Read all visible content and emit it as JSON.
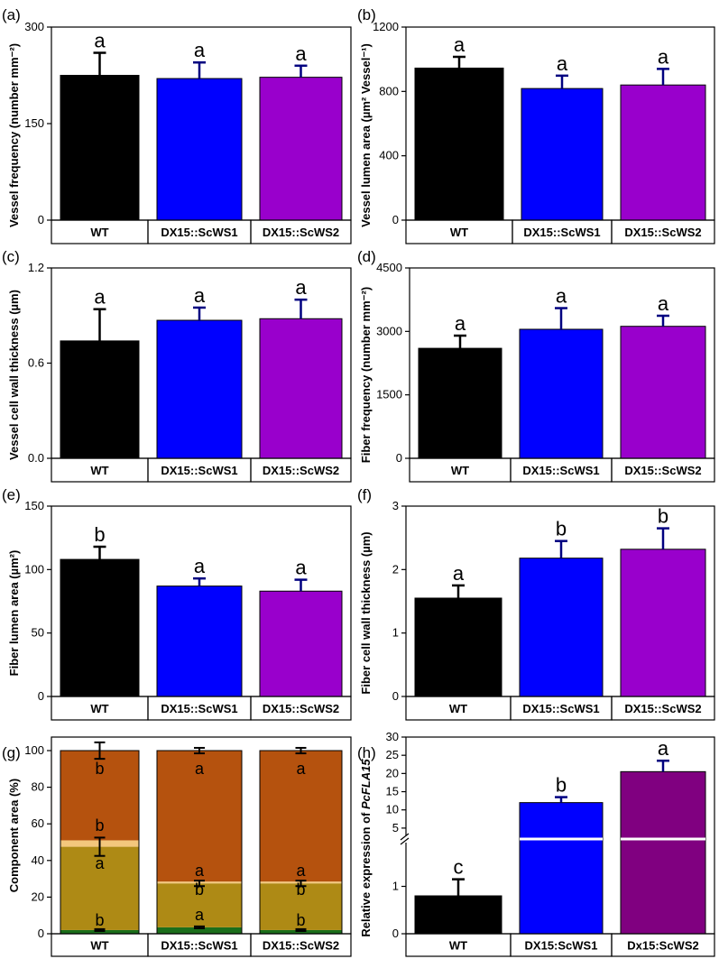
{
  "figure_title": "Multi-panel bar chart figure",
  "colors": {
    "WT": "#000000",
    "DX15::ScWS1": "#0000ff",
    "DX15::ScWS2": "#9900cc",
    "Dx15:ScWS2": "#800080",
    "heartwood": "#b5520e",
    "band": "#f3c77c",
    "wall": "#ae8a15",
    "base": "#1b6e1b"
  },
  "chart_data": [
    {
      "id": "a",
      "panel_label": "(a)",
      "type": "bar",
      "categories": [
        "WT",
        "DX15::ScWS1",
        "DX15::ScWS2"
      ],
      "values": [
        225,
        220,
        222
      ],
      "errors": [
        35,
        25,
        18
      ],
      "letters": [
        "a",
        "a",
        "a"
      ],
      "ylabel": "Vessel frequency (number mm⁻²)",
      "ylim": [
        0,
        300
      ],
      "yticks": [
        0,
        150,
        300
      ],
      "series": [
        {
          "name": "Vessel frequency",
          "values": [
            225,
            220,
            222
          ]
        }
      ]
    },
    {
      "id": "b",
      "panel_label": "(b)",
      "type": "bar",
      "categories": [
        "WT",
        "DX15::ScWS1",
        "DX15::ScWS2"
      ],
      "values": [
        945,
        818,
        840
      ],
      "errors": [
        70,
        80,
        100
      ],
      "letters": [
        "a",
        "a",
        "a"
      ],
      "ylabel": "Vessel lumen area (µm² Vessel⁻¹)",
      "ylim": [
        0,
        1200
      ],
      "yticks": [
        0,
        400,
        800,
        1200
      ],
      "series": [
        {
          "name": "Vessel lumen area",
          "values": [
            945,
            818,
            840
          ]
        }
      ]
    },
    {
      "id": "c",
      "panel_label": "(c)",
      "type": "bar",
      "categories": [
        "WT",
        "DX15::ScWS1",
        "DX15::ScWS2"
      ],
      "values": [
        0.74,
        0.87,
        0.88
      ],
      "errors": [
        0.2,
        0.08,
        0.12
      ],
      "letters": [
        "a",
        "a",
        "a"
      ],
      "ylabel": "Vessel cell wall thickness (µm)",
      "ylim": [
        0,
        1.2
      ],
      "yticks": [
        "0.0",
        "0.6",
        "1.2"
      ],
      "series": [
        {
          "name": "Vessel cell wall thickness",
          "values": [
            0.74,
            0.87,
            0.88
          ]
        }
      ]
    },
    {
      "id": "d",
      "panel_label": "(d)",
      "type": "bar",
      "categories": [
        "WT",
        "DX15::ScWS1",
        "DX15::ScWS2"
      ],
      "values": [
        2600,
        3050,
        3120
      ],
      "errors": [
        300,
        500,
        250
      ],
      "letters": [
        "a",
        "a",
        "a"
      ],
      "ylabel": "Fiber frequency (number mm⁻²)",
      "ylim": [
        0,
        4500
      ],
      "yticks": [
        0,
        1500,
        3000,
        4500
      ],
      "series": [
        {
          "name": "Fiber frequency",
          "values": [
            2600,
            3050,
            3120
          ]
        }
      ]
    },
    {
      "id": "e",
      "panel_label": "(e)",
      "type": "bar",
      "categories": [
        "WT",
        "DX15::ScWS1",
        "DX15::ScWS2"
      ],
      "values": [
        108,
        87,
        83
      ],
      "errors": [
        10,
        6,
        9
      ],
      "letters": [
        "b",
        "a",
        "a"
      ],
      "ylabel": "Fiber lumen area (µm²)",
      "ylim": [
        0,
        150
      ],
      "yticks": [
        0,
        50,
        100,
        150
      ],
      "series": [
        {
          "name": "Fiber lumen area",
          "values": [
            108,
            87,
            83
          ]
        }
      ]
    },
    {
      "id": "f",
      "panel_label": "(f)",
      "type": "bar",
      "categories": [
        "WT",
        "DX15::ScWS1",
        "DX15::ScWS2"
      ],
      "values": [
        1.55,
        2.18,
        2.32
      ],
      "errors": [
        0.2,
        0.27,
        0.33
      ],
      "letters": [
        "a",
        "b",
        "b"
      ],
      "ylabel": "Fiber cell wall thickness (µm)",
      "ylim": [
        0,
        3
      ],
      "yticks": [
        0,
        1,
        2,
        3
      ],
      "series": [
        {
          "name": "Fiber cell wall thickness",
          "values": [
            1.55,
            2.18,
            2.32
          ]
        }
      ]
    },
    {
      "id": "g",
      "panel_label": "(g)",
      "type": "stacked_bar",
      "categories": [
        "WT",
        "DX15::ScWS1",
        "DX15::ScWS2"
      ],
      "ylabel": "Component area (%)",
      "ylim": [
        0,
        100
      ],
      "yticks": [
        0,
        20,
        40,
        60,
        80,
        100
      ],
      "series": [
        {
          "name": "base",
          "values": [
            2,
            3.5,
            2
          ],
          "errors": [
            0.5,
            0.5,
            0.5
          ],
          "letters": [
            "b",
            "a",
            "b"
          ]
        },
        {
          "name": "wall",
          "values": [
            45.5,
            24,
            25.5
          ],
          "errors": [
            5,
            1.5,
            1.5
          ],
          "letters": [
            "a",
            "b",
            "b"
          ]
        },
        {
          "name": "band",
          "values": [
            3.5,
            1,
            1
          ],
          "errors": [
            0,
            0,
            0
          ],
          "letters": [
            "b",
            "a",
            "a"
          ]
        },
        {
          "name": "heartwood",
          "values": [
            49,
            71.5,
            71.5
          ],
          "errors": [
            4.5,
            1.5,
            1.5
          ],
          "letters": [
            "b",
            "a",
            "a"
          ]
        }
      ]
    },
    {
      "id": "h",
      "panel_label": "(h)",
      "type": "bar",
      "categories": [
        "WT",
        "DX15:ScWS1",
        "Dx15:ScWS2"
      ],
      "values": [
        0.8,
        12,
        20.5
      ],
      "errors": [
        0.35,
        1.5,
        3
      ],
      "letters": [
        "c",
        "b",
        "a"
      ],
      "ylabel": "Relative expression of PcFLA15",
      "ylabel_plain": "Relative expression of ",
      "ylabel_italic": "PcFLA15",
      "axis_break": true,
      "ylim_lower": [
        0,
        2
      ],
      "ylim_upper": [
        2,
        30
      ],
      "yticks_lower": [
        0,
        1
      ],
      "yticks_upper": [
        5,
        10,
        15,
        20,
        25,
        30
      ],
      "series": [
        {
          "name": "Relative expression",
          "values": [
            0.8,
            12,
            20.5
          ]
        }
      ]
    }
  ]
}
